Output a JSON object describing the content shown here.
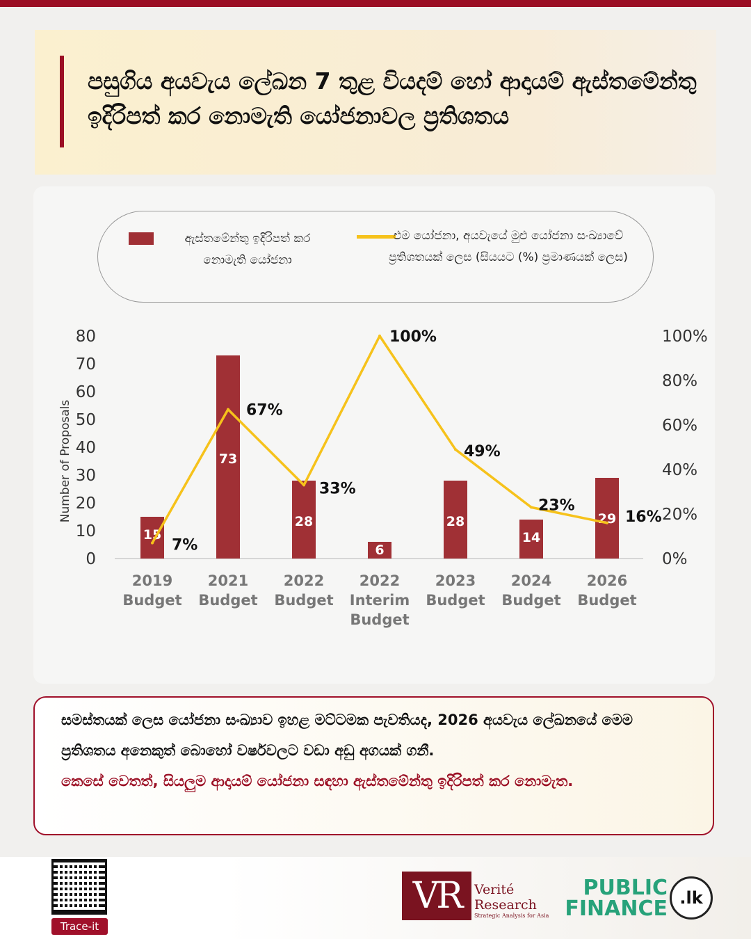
{
  "title": "පසුගිය අයවැය ලේඛන 7 තුළ වියදම් හෝ ආදායම් ඇස්තමේන්තු ඉදිරිපත් කර නොමැති යෝජනාවල ප්‍රතිශතය",
  "colors": {
    "bar": "#a03035",
    "line": "#f6c21b",
    "accent": "#9b0f24"
  },
  "chart_data": {
    "type": "bar+line",
    "categories": [
      [
        "2019",
        "Budget"
      ],
      [
        "2021",
        "Budget"
      ],
      [
        "2022",
        "Budget"
      ],
      [
        "2022",
        "Interim",
        "Budget"
      ],
      [
        "2023",
        "Budget"
      ],
      [
        "2024",
        "Budget"
      ],
      [
        "2026",
        "Budget"
      ]
    ],
    "series": [
      {
        "name": "ඇස්තමේන්තු ඉදිරිපත් කර නොමැති යෝජනා",
        "type": "bar",
        "axis": "left",
        "values": [
          15,
          73,
          28,
          6,
          28,
          14,
          29
        ]
      },
      {
        "name": "එම යෝජනා, අයවැයේ මුළු යෝජනා සංඛ්‍යාවේ ප්‍රතිශතයක් ලෙස (සියයට (%) ප්‍රමාණයක් ලෙස)",
        "type": "line",
        "axis": "right",
        "values": [
          7,
          67,
          33,
          100,
          49,
          23,
          16
        ],
        "labels": [
          "7%",
          "67%",
          "33%",
          "100%",
          "49%",
          "23%",
          "16%"
        ]
      }
    ],
    "ylabel": "Number of Proposals",
    "ylim": [
      0,
      80
    ],
    "yticks": [
      "0",
      "10",
      "20",
      "30",
      "40",
      "50",
      "60",
      "70",
      "80"
    ],
    "y2lim": [
      0,
      100
    ],
    "y2ticks": [
      "0%",
      "20%",
      "40%",
      "60%",
      "80%",
      "100%"
    ],
    "legend": "top",
    "grid": false
  },
  "legend": {
    "bar_label": "ඇස්තමේන්තු ඉදිරිපත් කර නොමැති යෝජනා",
    "line_label": "එම යෝජනා, අයවැයේ මුළු යෝජනා සංඛ්‍යාවේ ප්‍රතිශතයක් ලෙස (සියයට (%) ප්‍රමාණයක් ලෙස)"
  },
  "summary": {
    "text_black": "සමස්තයක් ලෙස යෝජනා සංඛ්‍යාව ඉහළ මට්ටමක පැවතියද, 2026 අයවැය ලේඛනයේ මෙම ප්‍රතිශතය අනෙකුත් බොහෝ වර්ෂවලට වඩා අඩු අගයක් ගනී.",
    "text_red": "කෙසේ වෙතත්, සියලුම ආදායම් යෝජනා සඳහා ඇස්තමේන්තු ඉදිරිපත් කර නොමැත."
  },
  "footer": {
    "qr_label": "Trace-it",
    "vr_mark": "VR",
    "vr_name_1": "Verité",
    "vr_name_2": "Research",
    "vr_tagline": "Strategic Analysis for Asia",
    "pf_name": "PUBLIC FINANCE",
    "pf_domain": ".lk"
  }
}
